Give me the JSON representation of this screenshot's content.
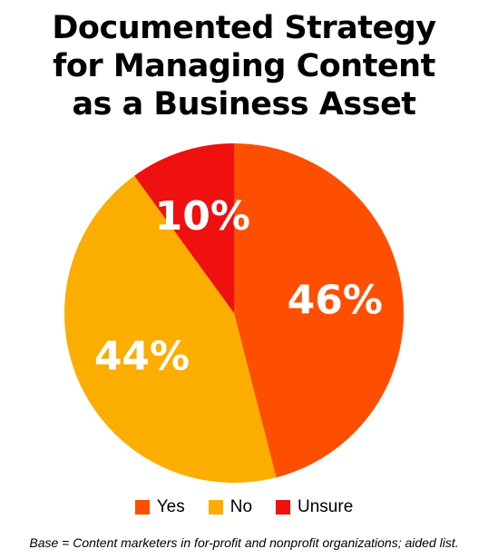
{
  "chart_data": {
    "type": "pie",
    "title": "Documented Strategy for Managing Content as a Business Asset",
    "title_lines": [
      "Documented Strategy",
      "for Managing Content",
      "as a Business Asset"
    ],
    "categories": [
      "Yes",
      "No",
      "Unsure"
    ],
    "values": [
      46,
      44,
      10
    ],
    "labels": [
      "46%",
      "44%",
      "10%"
    ],
    "colors": [
      "#fe4f00",
      "#fbad00",
      "#ef1010"
    ],
    "legend_placement": "bottom",
    "footnote": "Base = Content marketers in for-profit and nonprofit organizations; aided list."
  }
}
